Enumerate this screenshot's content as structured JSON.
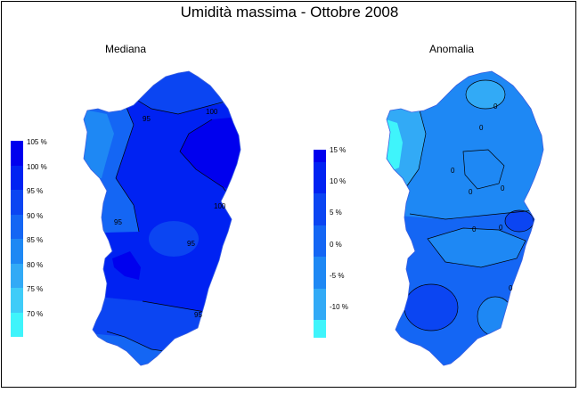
{
  "title": "Umidità massima - Ottobre 2008",
  "maps": [
    {
      "subtitle": "Mediana",
      "legend": [
        "105 %",
        "100 %",
        "95 %",
        "90 %",
        "85 %",
        "80 %",
        "75 %",
        "70 %"
      ],
      "colors": [
        "#0000ee",
        "#0022f2",
        "#0b45f2",
        "#1466f4",
        "#1e88f4",
        "#32aaf6",
        "#3fccf8",
        "#3ff4fb"
      ],
      "contour_labels": [
        "95",
        "100",
        "100",
        "95",
        "95",
        "95"
      ]
    },
    {
      "subtitle": "Anomalia",
      "legend": [
        "15 %",
        "10 %",
        "5 %",
        "0 %",
        "-5 %",
        "-10 %"
      ],
      "colors": [
        "#0000ee",
        "#0022f2",
        "#0b45f2",
        "#1466f4",
        "#1e88f4",
        "#32aaf6",
        "#3fccf8",
        "#3ff4fb"
      ],
      "contour_labels": [
        "0",
        "0",
        "0",
        "0",
        "0",
        "0",
        "0",
        "0"
      ]
    }
  ]
}
